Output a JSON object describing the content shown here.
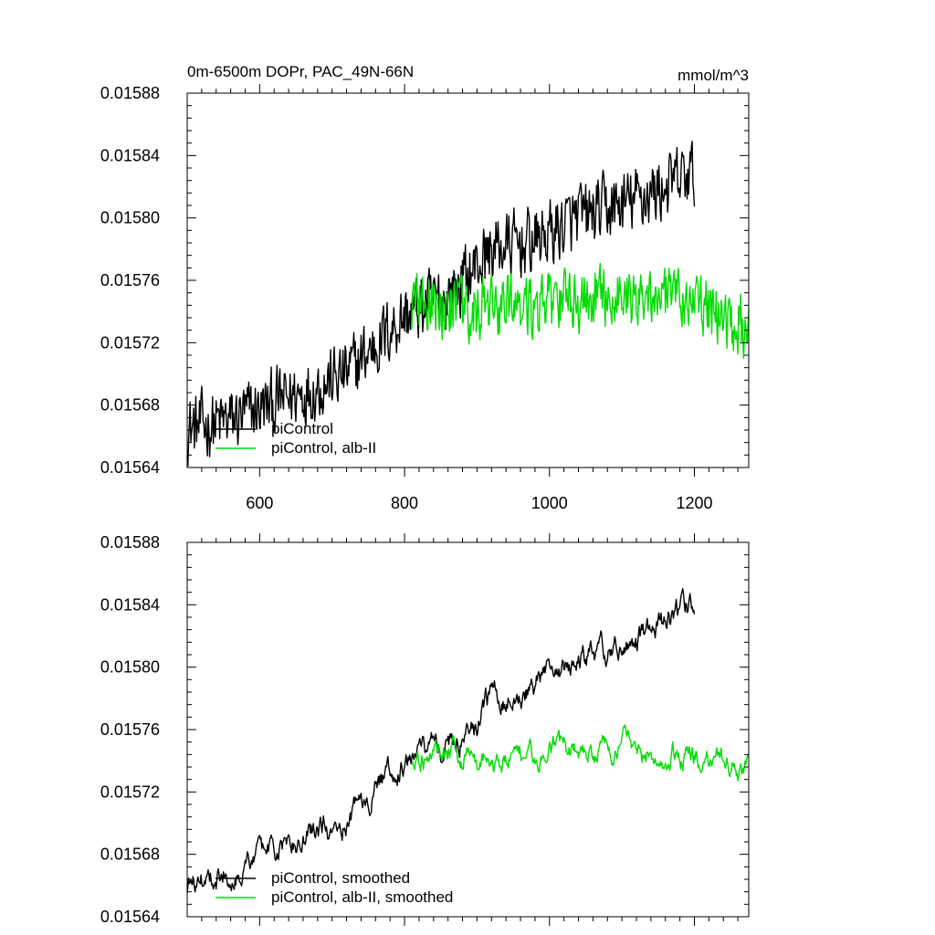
{
  "chart_data": [
    {
      "type": "line",
      "title_left": "0m-6500m DOPr, PAC_49N-66N",
      "title_right": "mmol/m^3",
      "xlim": [
        500,
        1275
      ],
      "ylim": [
        0.01564,
        0.01588
      ],
      "xticks": [
        600,
        800,
        1000,
        1200
      ],
      "xtick_labels": [
        "600",
        "800",
        "1000",
        "1200"
      ],
      "yticks": [
        0.01564,
        0.01568,
        0.01572,
        0.01576,
        0.0158,
        0.01584,
        0.01588
      ],
      "ytick_labels": [
        "0.01564",
        "0.01568",
        "0.01572",
        "0.01576",
        "0.01580",
        "0.01584",
        "0.01588"
      ],
      "legend_position": "lower-left",
      "series": [
        {
          "name": "piControl",
          "color": "#000000",
          "x_start": 500,
          "x_end": 1200,
          "trend_x": [
            500,
            560,
            640,
            720,
            800,
            860,
            920,
            980,
            1040,
            1100,
            1160,
            1200
          ],
          "trend_y": [
            0.015665,
            0.01567,
            0.015685,
            0.0157,
            0.015738,
            0.01575,
            0.01578,
            0.015785,
            0.0158,
            0.015808,
            0.01582,
            0.015828
          ],
          "noise": 2.4e-05
        },
        {
          "name": "piControl, alb-II",
          "color": "#00dd00",
          "x_start": 810,
          "x_end": 1275,
          "trend_x": [
            810,
            900,
            1000,
            1080,
            1150,
            1200,
            1275
          ],
          "trend_y": [
            0.015745,
            0.01574,
            0.015745,
            0.01575,
            0.01575,
            0.015745,
            0.01573
          ],
          "noise": 2.2e-05
        }
      ]
    },
    {
      "type": "line",
      "xlim": [
        500,
        1275
      ],
      "ylim": [
        0.01564,
        0.01588
      ],
      "xticks": [
        600,
        800,
        1000,
        1200
      ],
      "yticks": [
        0.01564,
        0.01568,
        0.01572,
        0.01576,
        0.0158,
        0.01584,
        0.01588
      ],
      "ytick_labels": [
        "0.01564",
        "0.01568",
        "0.01572",
        "0.01576",
        "0.01580",
        "0.01584",
        "0.01588"
      ],
      "legend_position": "lower-left",
      "series": [
        {
          "name": "piControl, smoothed",
          "color": "#000000",
          "x_start": 500,
          "x_end": 1200,
          "trend_x": [
            500,
            560,
            640,
            720,
            800,
            860,
            920,
            980,
            1040,
            1100,
            1160,
            1200
          ],
          "trend_y": [
            0.01566,
            0.015672,
            0.015685,
            0.015705,
            0.01574,
            0.01575,
            0.015778,
            0.015788,
            0.015802,
            0.015812,
            0.015825,
            0.015838
          ],
          "noise": 1.2e-05
        },
        {
          "name": "piControl, alb-II, smoothed",
          "color": "#00dd00",
          "x_start": 810,
          "x_end": 1275,
          "trend_x": [
            810,
            900,
            1000,
            1080,
            1150,
            1200,
            1275
          ],
          "trend_y": [
            0.015742,
            0.01574,
            0.015745,
            0.015748,
            0.015748,
            0.015742,
            0.01573
          ],
          "noise": 1.1e-05
        }
      ]
    }
  ]
}
